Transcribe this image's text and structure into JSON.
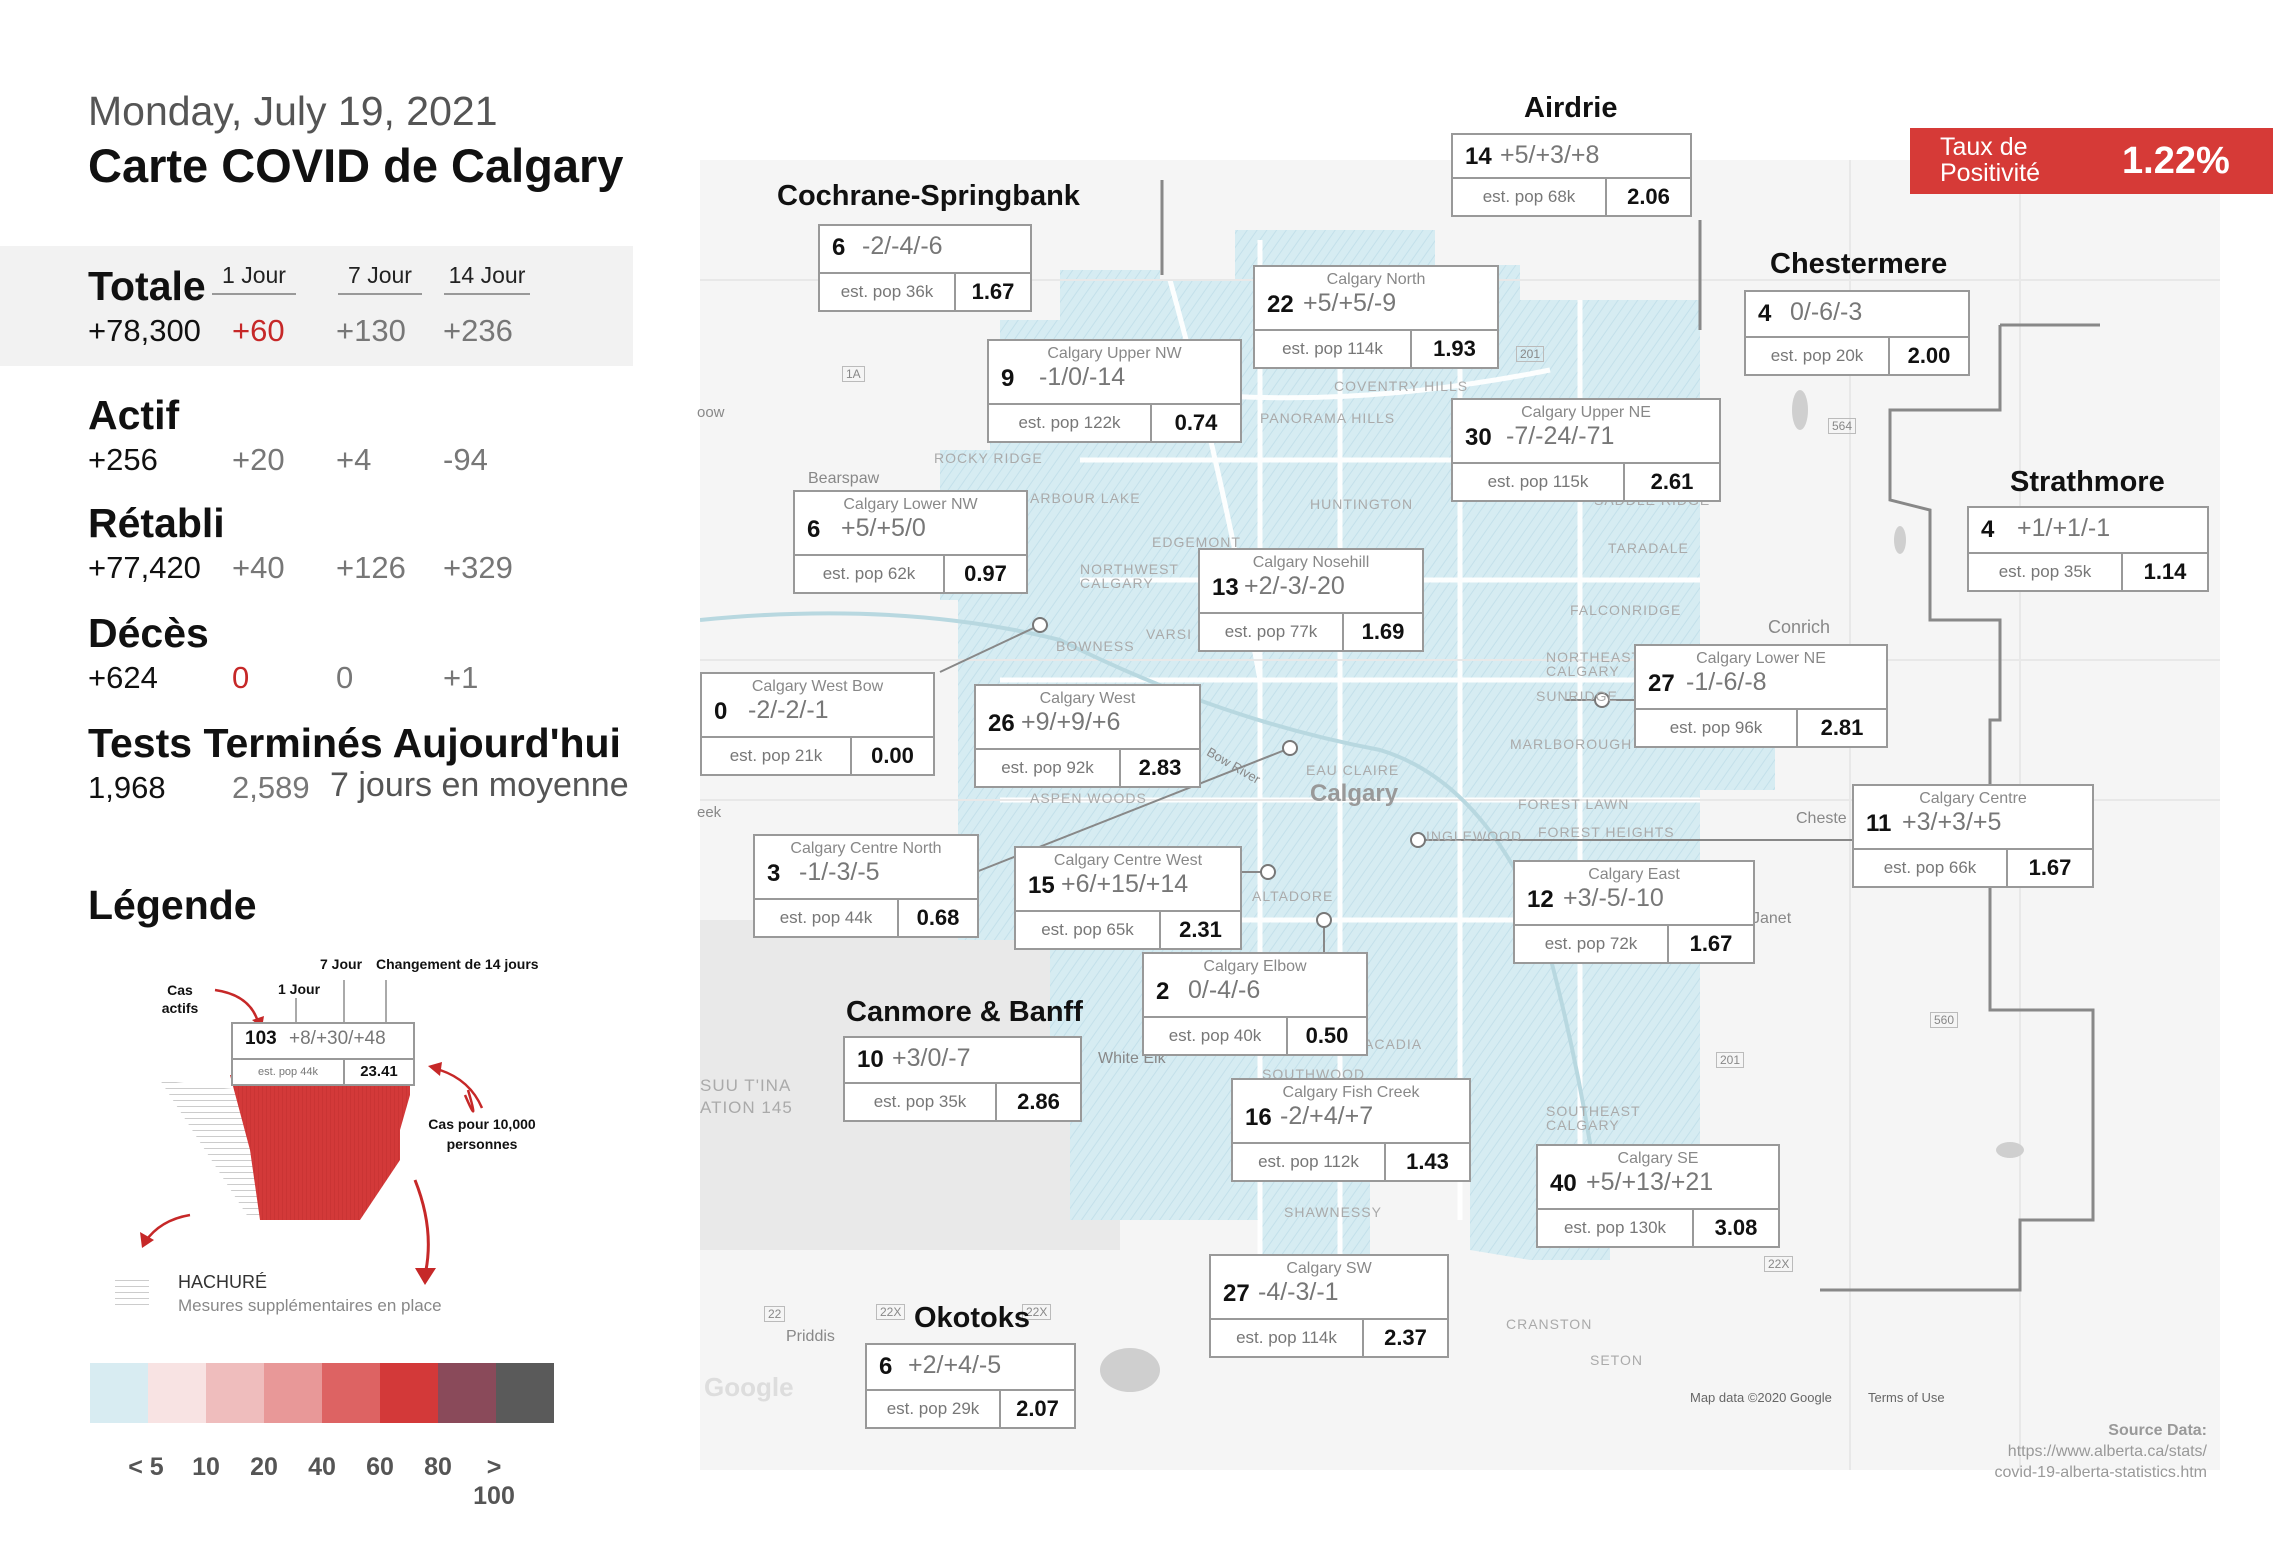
{
  "header": {
    "date": "Monday, July 19, 2021",
    "title": "Carte COVID de Calgary"
  },
  "columns": [
    "1 Jour",
    "7 Jour",
    "14 Jour"
  ],
  "totale": {
    "label": "Totale",
    "value": "+78,300",
    "d1": "+60",
    "d7": "+130",
    "d14": "+236"
  },
  "actif": {
    "label": "Actif",
    "value": "+256",
    "d1": "+20",
    "d7": "+4",
    "d14": "-94"
  },
  "retabli": {
    "label": "Rétabli",
    "value": "+77,420",
    "d1": "+40",
    "d7": "+126",
    "d14": "+329"
  },
  "deces": {
    "label": "Décès",
    "value": "+624",
    "d1": "0",
    "d7": "0",
    "d14": "+1"
  },
  "tests": {
    "label": "Tests Terminés Aujourd'hui",
    "today": "1,968",
    "avg": "2,589",
    "avg_label": "7 jours en moyenne"
  },
  "positivity": {
    "label_line1": "Taux de",
    "label_line2": "Positivité",
    "value": "1.22%"
  },
  "legend": {
    "title": "Légende",
    "lbl_active": "Cas actifs",
    "lbl_1day": "1 Jour",
    "lbl_7day": "7 Jour",
    "lbl_14day": "Changement de 14 jours",
    "lbl_per10k": "Cas pour 10,000 personnes",
    "sample": {
      "n": "103",
      "ch": "+8/+30/+48",
      "pop": "est. pop 44k",
      "rate": "23.41"
    },
    "hatch_title": "HACHURÉ",
    "hatch_desc": "Mesures supplémentaires en place",
    "scale": [
      {
        "label": "< 5",
        "color": "#d8ecf2"
      },
      {
        "label": "10",
        "color": "#f8e3e3"
      },
      {
        "label": "20",
        "color": "#efbdbd"
      },
      {
        "label": "40",
        "color": "#e89898"
      },
      {
        "label": "60",
        "color": "#dd6363"
      },
      {
        "label": "80",
        "color": "#d33939"
      },
      {
        "label": "> 100",
        "color": "#8a4a5a"
      },
      {
        "label": "",
        "color": "#5a5a5a"
      }
    ]
  },
  "regions": {
    "airdrie": "Airdrie",
    "cochrane": "Cochrane-Springbank",
    "chestermere": "Chestermere",
    "strathmore": "Strathmore",
    "canmore": "Canmore & Banff",
    "okotoks": "Okotoks"
  },
  "map_labels": {
    "calgary": "Calgary",
    "conrich": "Conrich",
    "bearspaw": "Bearspaw",
    "white_elk": "White Elk",
    "priddis": "Priddis",
    "janet": "Janet",
    "chestermere_map": "Cheste",
    "tsuutina": "SUU T'INA",
    "tsuutina2": "ATION 145",
    "coventry": "COVENTRY HILLS",
    "panorama": "PANORAMA HILLS",
    "rocky": "ROCKY RIDGE",
    "arbour": "ARBOUR LAKE",
    "huntington": "HUNTINGTON",
    "edgemont": "EDGEMONT",
    "nwcalgary": "NORTHWEST CALGARY",
    "bowness": "BOWNESS",
    "taradale": "TARADALE",
    "saddle": "SADDLE RIDGE",
    "falconridge": "FALCONRIDGE",
    "necalgary": "NORTHEAST CALGARY",
    "sunridge": "SUNRIDGE",
    "marlborough": "MARLBOROUGH",
    "forestlawn": "FOREST LAWN",
    "foresthts": "FOREST HEIGHTS",
    "eauclaire": "EAU CLAIRE",
    "aspen": "ASPEN WOODS",
    "altadore": "ALTADORE",
    "englewood": "INGLEWOOD",
    "southwood": "SOUTHWOOD",
    "secalgary": "SOUTHEAST CALGARY",
    "shawnessy": "SHAWNESSY",
    "cranston": "CRANSTON",
    "seton": "SETON",
    "acadia": "ACADIA",
    "bowriver": "Bow River",
    "varsity": "VARSI",
    "eek": "eek",
    "dow": "oow",
    "mapdata": "Map data ©2020 Google",
    "terms": "Terms of Use",
    "google": "Google",
    "r1a": "1A",
    "r201": "201",
    "r564": "564",
    "r560": "560",
    "r201b": "201",
    "r22x": "22X",
    "r22xb": "22X",
    "r22xc": "22X",
    "r22": "22"
  },
  "source": {
    "title": "Source Data:",
    "line1": "https://www.alberta.ca/stats/",
    "line2": "covid-19-alberta-statistics.htm"
  },
  "districts": [
    {
      "name": "",
      "n": "14",
      "ch": "+5/+3/+8",
      "pop": "est. pop 68k",
      "rate": "2.06"
    },
    {
      "name": "",
      "n": "6",
      "ch": "-2/-4/-6",
      "pop": "est. pop 36k",
      "rate": "1.67"
    },
    {
      "name": "Calgary North",
      "n": "22",
      "ch": "+5/+5/-9",
      "pop": "est. pop 114k",
      "rate": "1.93"
    },
    {
      "name": "",
      "n": "4",
      "ch": "0/-6/-3",
      "pop": "est. pop 20k",
      "rate": "2.00"
    },
    {
      "name": "Calgary Upper NW",
      "n": "9",
      "ch": "-1/0/-14",
      "pop": "est. pop 122k",
      "rate": "0.74"
    },
    {
      "name": "Calgary Upper NE",
      "n": "30",
      "ch": "-7/-24/-71",
      "pop": "est. pop 115k",
      "rate": "2.61"
    },
    {
      "name": "",
      "n": "4",
      "ch": "+1/+1/-1",
      "pop": "est. pop 35k",
      "rate": "1.14"
    },
    {
      "name": "Calgary Lower NW",
      "n": "6",
      "ch": "+5/+5/0",
      "pop": "est. pop 62k",
      "rate": "0.97"
    },
    {
      "name": "Calgary Nosehill",
      "n": "13",
      "ch": "+2/-3/-20",
      "pop": "est. pop 77k",
      "rate": "1.69"
    },
    {
      "name": "Calgary West Bow",
      "n": "0",
      "ch": "-2/-2/-1",
      "pop": "est. pop 21k",
      "rate": "0.00"
    },
    {
      "name": "Calgary West",
      "n": "26",
      "ch": "+9/+9/+6",
      "pop": "est. pop 92k",
      "rate": "2.83"
    },
    {
      "name": "Calgary Lower NE",
      "n": "27",
      "ch": "-1/-6/-8",
      "pop": "est. pop 96k",
      "rate": "2.81"
    },
    {
      "name": "Calgary Centre North",
      "n": "3",
      "ch": "-1/-3/-5",
      "pop": "est. pop 44k",
      "rate": "0.68"
    },
    {
      "name": "Calgary Centre West",
      "n": "15",
      "ch": "+6/+15/+14",
      "pop": "est. pop 65k",
      "rate": "2.31"
    },
    {
      "name": "Calgary Centre",
      "n": "11",
      "ch": "+3/+3/+5",
      "pop": "est. pop 66k",
      "rate": "1.67"
    },
    {
      "name": "Calgary East",
      "n": "12",
      "ch": "+3/-5/-10",
      "pop": "est. pop 72k",
      "rate": "1.67"
    },
    {
      "name": "Calgary Elbow",
      "n": "2",
      "ch": "0/-4/-6",
      "pop": "est. pop 40k",
      "rate": "0.50"
    },
    {
      "name": "",
      "n": "10",
      "ch": "+3/0/-7",
      "pop": "est. pop 35k",
      "rate": "2.86"
    },
    {
      "name": "Calgary Fish Creek",
      "n": "16",
      "ch": "-2/+4/+7",
      "pop": "est. pop 112k",
      "rate": "1.43"
    },
    {
      "name": "Calgary SE",
      "n": "40",
      "ch": "+5/+13/+21",
      "pop": "est. pop 130k",
      "rate": "3.08"
    },
    {
      "name": "Calgary SW",
      "n": "27",
      "ch": "-4/-3/-1",
      "pop": "est. pop 114k",
      "rate": "2.37"
    },
    {
      "name": "",
      "n": "6",
      "ch": "+2/+4/-5",
      "pop": "est. pop 29k",
      "rate": "2.07"
    }
  ]
}
